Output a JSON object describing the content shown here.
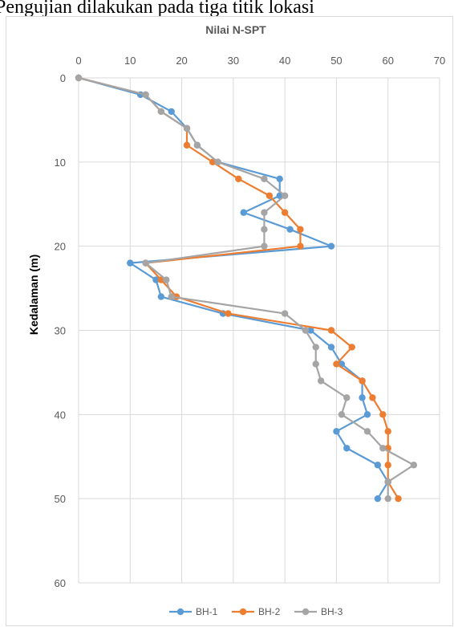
{
  "caption": "Pengujian dilakukan pada tiga titik lokasi",
  "chart_data": {
    "type": "line",
    "title": "Nilai N-SPT",
    "xlabel": "",
    "ylabel": "Kedalaman (m)",
    "xlim": [
      0,
      70
    ],
    "ylim": [
      0,
      60
    ],
    "x_ticks": [
      "0",
      "10",
      "20",
      "30",
      "40",
      "50",
      "60",
      "70"
    ],
    "y_ticks": [
      "0",
      "10",
      "20",
      "30",
      "40",
      "50",
      "60"
    ],
    "x_axis_position": "top",
    "y_axis_inverted": true,
    "grid": true,
    "legend_position": "bottom",
    "series": [
      {
        "name": "BH-1",
        "color": "#5b9bd5",
        "points": [
          [
            0,
            0
          ],
          [
            12,
            2
          ],
          [
            18,
            4
          ],
          [
            21,
            6
          ],
          [
            23,
            8
          ],
          [
            27,
            10
          ],
          [
            39,
            12
          ],
          [
            39,
            14
          ],
          [
            32,
            16
          ],
          [
            41,
            18
          ],
          [
            49,
            20
          ],
          [
            10,
            22
          ],
          [
            15,
            24
          ],
          [
            16,
            26
          ],
          [
            28,
            28
          ],
          [
            45,
            30
          ],
          [
            49,
            32
          ],
          [
            51,
            34
          ],
          [
            55,
            36
          ],
          [
            55,
            38
          ],
          [
            56,
            40
          ],
          [
            50,
            42
          ],
          [
            52,
            44
          ],
          [
            58,
            46
          ],
          [
            60,
            48
          ],
          [
            58,
            50
          ]
        ]
      },
      {
        "name": "BH-2",
        "color": "#ed7d31",
        "points": [
          [
            0,
            0
          ],
          [
            13,
            2
          ],
          [
            16,
            4
          ],
          [
            21,
            6
          ],
          [
            21,
            8
          ],
          [
            26,
            10
          ],
          [
            31,
            12
          ],
          [
            37,
            14
          ],
          [
            40,
            16
          ],
          [
            43,
            18
          ],
          [
            43,
            20
          ],
          [
            13,
            22
          ],
          [
            16,
            24
          ],
          [
            19,
            26
          ],
          [
            29,
            28
          ],
          [
            49,
            30
          ],
          [
            53,
            32
          ],
          [
            50,
            34
          ],
          [
            55,
            36
          ],
          [
            57,
            38
          ],
          [
            59,
            40
          ],
          [
            60,
            42
          ],
          [
            60,
            44
          ],
          [
            60,
            46
          ],
          [
            60,
            48
          ],
          [
            62,
            50
          ]
        ]
      },
      {
        "name": "BH-3",
        "color": "#a5a5a5",
        "points": [
          [
            0,
            0
          ],
          [
            13,
            2
          ],
          [
            16,
            4
          ],
          [
            21,
            6
          ],
          [
            23,
            8
          ],
          [
            27,
            10
          ],
          [
            36,
            12
          ],
          [
            40,
            14
          ],
          [
            36,
            16
          ],
          [
            36,
            18
          ],
          [
            36,
            20
          ],
          [
            13,
            22
          ],
          [
            17,
            24
          ],
          [
            18,
            26
          ],
          [
            40,
            28
          ],
          [
            44,
            30
          ],
          [
            46,
            32
          ],
          [
            46,
            34
          ],
          [
            47,
            36
          ],
          [
            52,
            38
          ],
          [
            51,
            40
          ],
          [
            56,
            42
          ],
          [
            59,
            44
          ],
          [
            65,
            46
          ],
          [
            60,
            48
          ],
          [
            60,
            50
          ]
        ]
      }
    ]
  }
}
